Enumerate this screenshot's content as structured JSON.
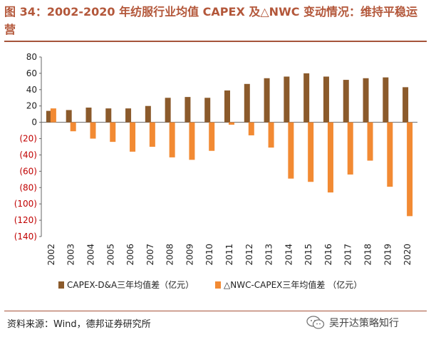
{
  "title": "图 34：2002-2020 年纺服行业均值 CAPEX 及△NWC 变动情况：维持平稳运营",
  "source": "资料来源：Wind，德邦证券研究所",
  "watermark": "吴开达策略知行",
  "watermark_icon": "wechat-icon",
  "colors": {
    "series1": "#8b5a2b",
    "series2": "#f28a33",
    "title": "#b3573a",
    "negative_tick": "#c00000"
  },
  "chart_data": {
    "type": "bar",
    "categories": [
      "2002",
      "2003",
      "2004",
      "2005",
      "2006",
      "2007",
      "2008",
      "2009",
      "2010",
      "2011",
      "2012",
      "2013",
      "2014",
      "2015",
      "2016",
      "2017",
      "2018",
      "2019",
      "2020"
    ],
    "series": [
      {
        "name": "CAPEX-D&A三年均值差（亿元）",
        "values": [
          14,
          15,
          18,
          17,
          17,
          20,
          30,
          31,
          30,
          39,
          47,
          54,
          56,
          60,
          56,
          52,
          54,
          55,
          43
        ]
      },
      {
        "name": "△NWC-CAPEX三年均值差 （亿元）",
        "values": [
          17,
          -11,
          -20,
          -24,
          -36,
          -30,
          -43,
          -46,
          -35,
          -3,
          -16,
          -31,
          -69,
          -73,
          -86,
          -64,
          -47,
          -79,
          -115
        ]
      }
    ],
    "y_ticks": [
      "80",
      "60",
      "40",
      "20",
      "0",
      "(20)",
      "(40)",
      "(60)",
      "(80)",
      "(100)",
      "(120)",
      "(140)"
    ],
    "ylim": [
      -140,
      80
    ],
    "y_step": 20,
    "legend_position": "bottom"
  }
}
